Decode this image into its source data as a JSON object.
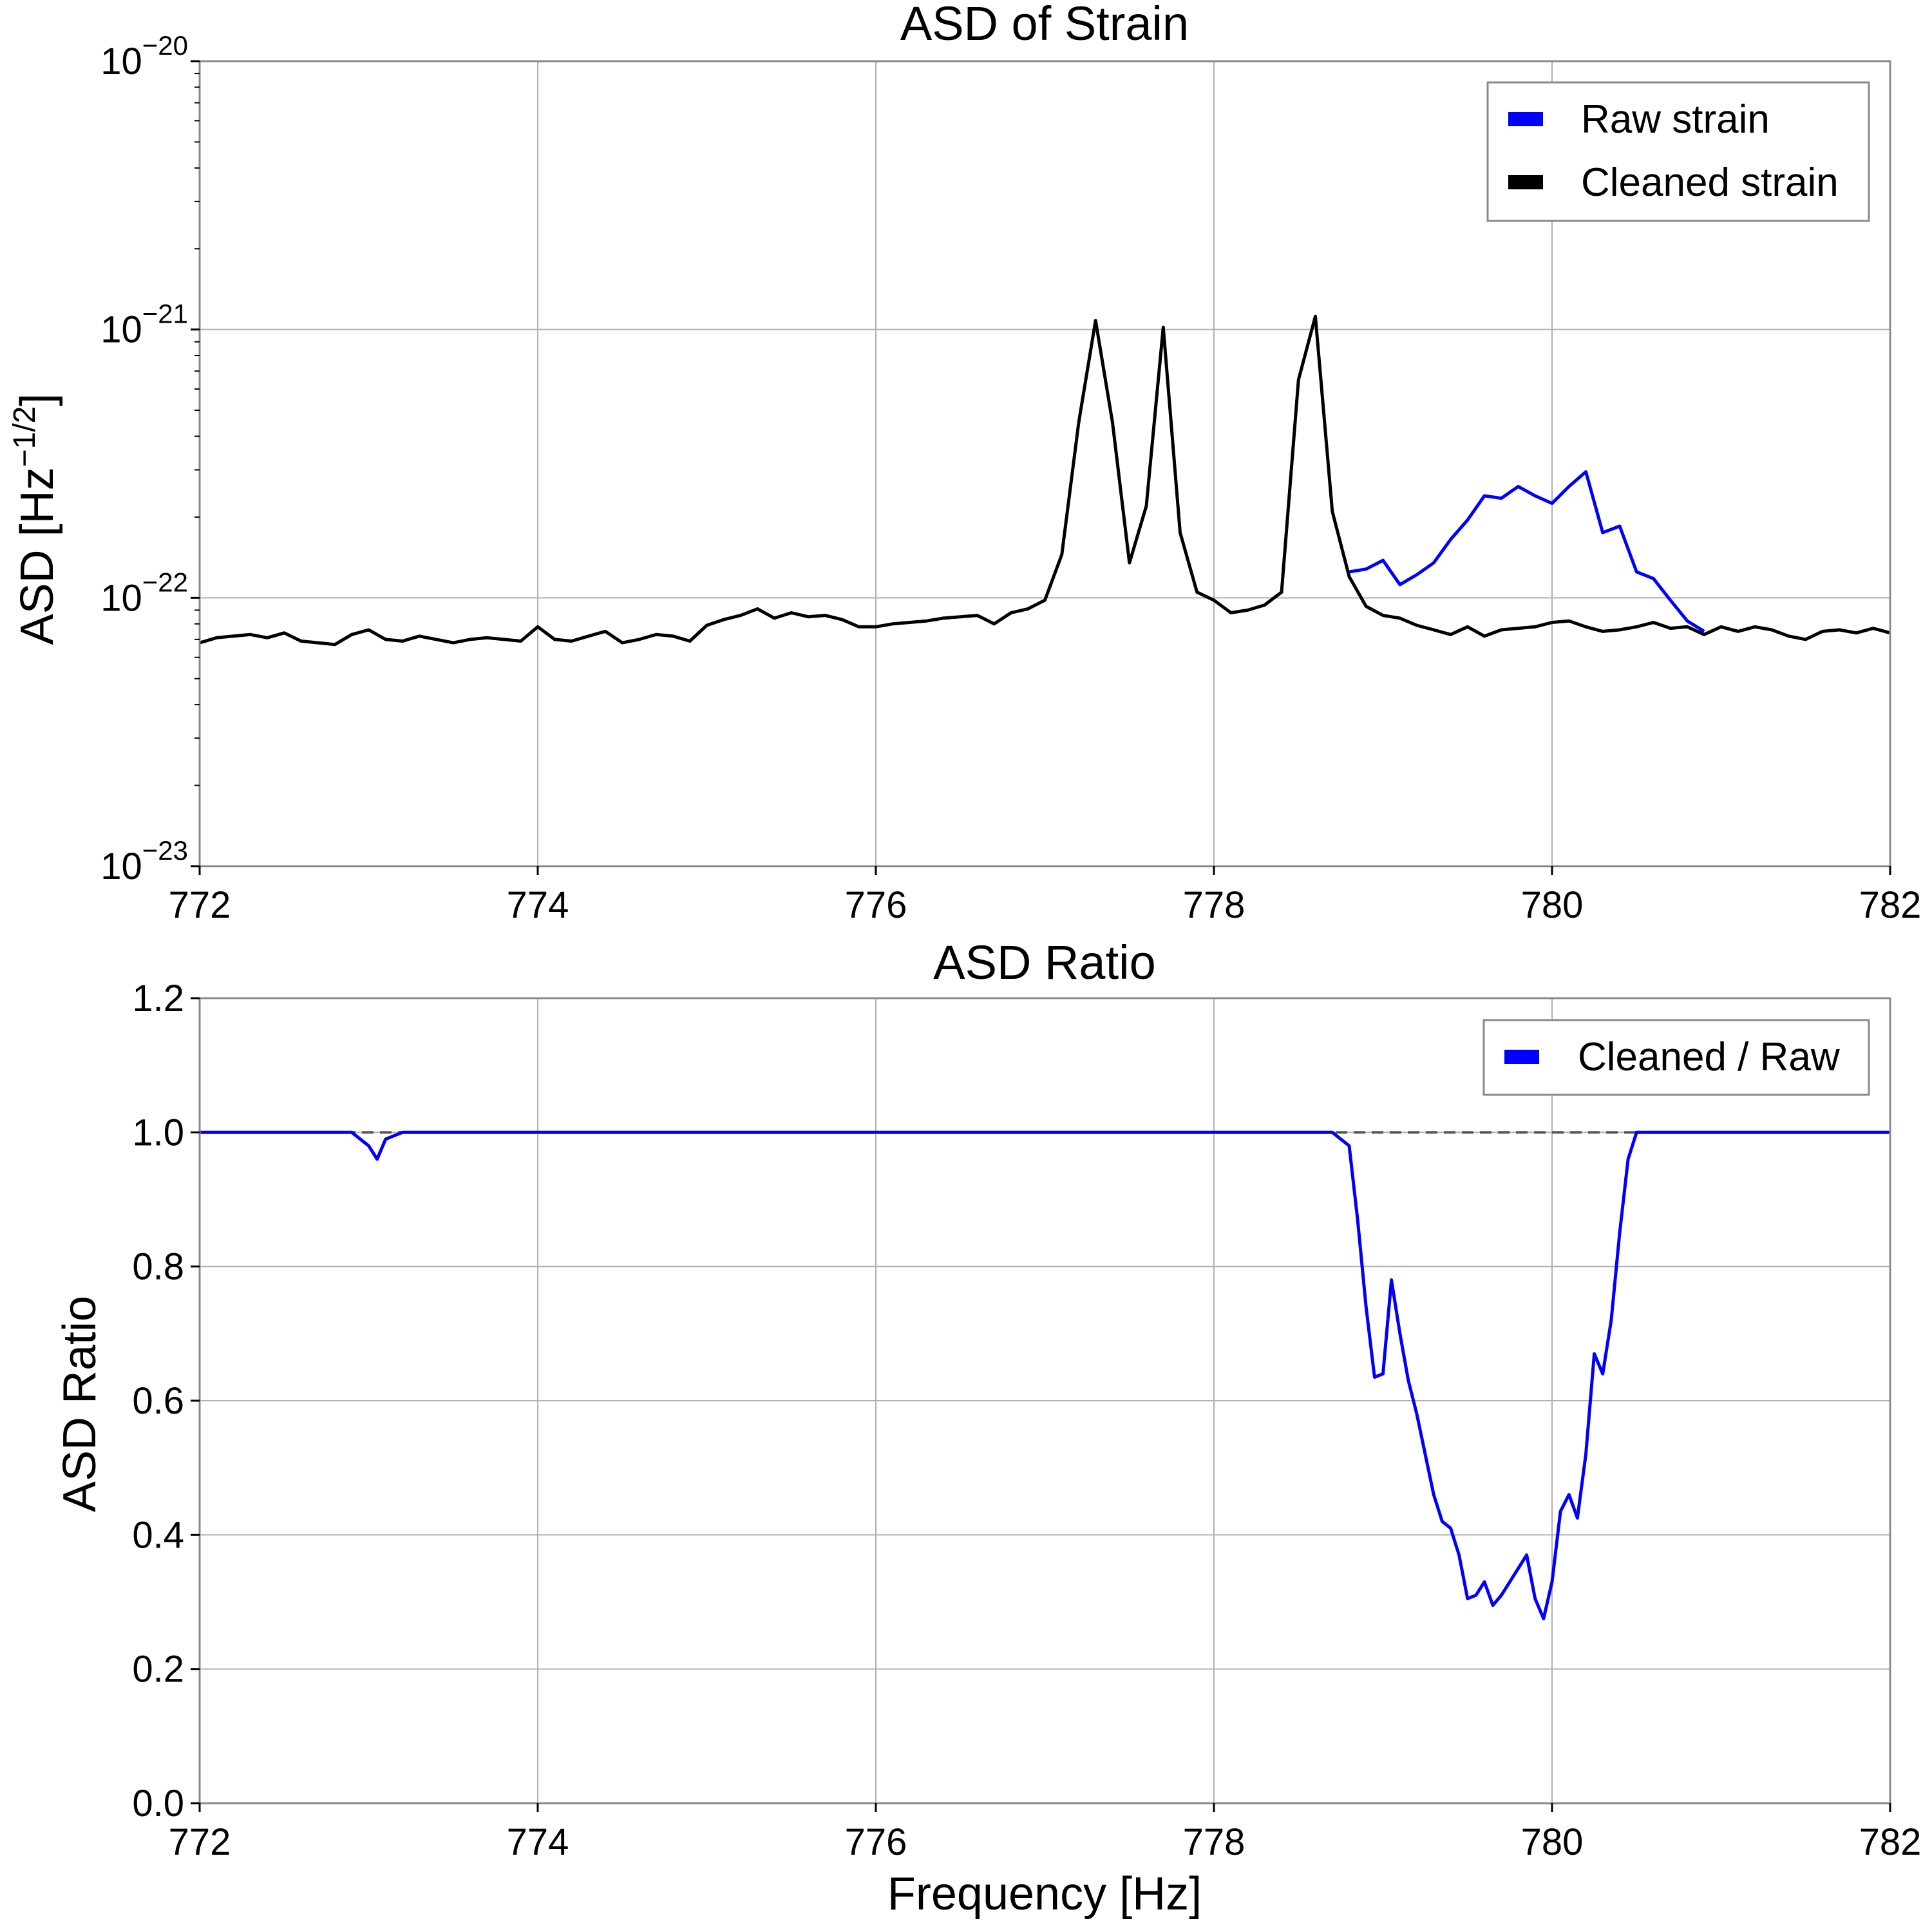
{
  "chart_data": [
    {
      "type": "line",
      "title": "ASD of Strain",
      "xlabel": "",
      "ylabel": "ASD [Hz^-1/2]",
      "ylabel_parts": {
        "main": "ASD [Hz",
        "exp": "−1/2",
        "close": "]"
      },
      "xlim": [
        772,
        782
      ],
      "ylim": [
        1e-23,
        1e-20
      ],
      "yscale": "log",
      "x_ticks": [
        "772",
        "774",
        "776",
        "778",
        "780",
        "782"
      ],
      "y_ticks": [
        {
          "base": "10",
          "exp": "−23"
        },
        {
          "base": "10",
          "exp": "−22"
        },
        {
          "base": "10",
          "exp": "−21"
        },
        {
          "base": "10",
          "exp": "−20"
        }
      ],
      "grid": true,
      "legend_position": "top-right",
      "series": [
        {
          "name": "Raw strain",
          "color": "#0000ff",
          "x": [
            778.8,
            778.9,
            779.0,
            779.1,
            779.2,
            779.3,
            779.4,
            779.5,
            779.6,
            779.7,
            779.8,
            779.9,
            780.0,
            780.1,
            780.2,
            780.3,
            780.4,
            780.5,
            780.6,
            780.7,
            780.8,
            780.9
          ],
          "values": [
            1.25e-22,
            1.28e-22,
            1.38e-22,
            1.12e-22,
            1.22e-22,
            1.35e-22,
            1.65e-22,
            1.95e-22,
            2.4e-22,
            2.35e-22,
            2.6e-22,
            2.4e-22,
            2.25e-22,
            2.6e-22,
            2.95e-22,
            1.75e-22,
            1.85e-22,
            1.25e-22,
            1.18e-22,
            9.8e-23,
            8.2e-23,
            7.5e-23
          ]
        },
        {
          "name": "Cleaned strain",
          "color": "#000000",
          "x": [
            772.0,
            772.1,
            772.2,
            772.3,
            772.4,
            772.5,
            772.6,
            772.7,
            772.8,
            772.9,
            773.0,
            773.1,
            773.2,
            773.3,
            773.4,
            773.5,
            773.6,
            773.7,
            773.8,
            773.9,
            774.0,
            774.1,
            774.2,
            774.3,
            774.4,
            774.5,
            774.6,
            774.7,
            774.8,
            774.9,
            775.0,
            775.1,
            775.2,
            775.3,
            775.4,
            775.5,
            775.6,
            775.7,
            775.8,
            775.9,
            776.0,
            776.1,
            776.2,
            776.3,
            776.4,
            776.5,
            776.6,
            776.7,
            776.8,
            776.9,
            777.0,
            777.1,
            777.2,
            777.3,
            777.4,
            777.5,
            777.6,
            777.7,
            777.8,
            777.9,
            778.0,
            778.1,
            778.2,
            778.3,
            778.4,
            778.5,
            778.6,
            778.7,
            778.8,
            778.9,
            779.0,
            779.1,
            779.2,
            779.3,
            779.4,
            779.5,
            779.6,
            779.7,
            779.8,
            779.9,
            780.0,
            780.1,
            780.2,
            780.3,
            780.4,
            780.5,
            780.6,
            780.7,
            780.8,
            780.9,
            781.0,
            781.1,
            781.2,
            781.3,
            781.4,
            781.5,
            781.6,
            781.7,
            781.8,
            781.9,
            782.0
          ],
          "values": [
            6.8e-23,
            7.1e-23,
            7.2e-23,
            7.3e-23,
            7.1e-23,
            7.4e-23,
            6.9e-23,
            6.8e-23,
            6.7e-23,
            7.3e-23,
            7.6e-23,
            7e-23,
            6.9e-23,
            7.2e-23,
            7e-23,
            6.8e-23,
            7e-23,
            7.1e-23,
            7e-23,
            6.9e-23,
            7.8e-23,
            7e-23,
            6.9e-23,
            7.2e-23,
            7.5e-23,
            6.8e-23,
            7e-23,
            7.3e-23,
            7.2e-23,
            6.9e-23,
            7.9e-23,
            8.3e-23,
            8.6e-23,
            9.1e-23,
            8.4e-23,
            8.8e-23,
            8.5e-23,
            8.6e-23,
            8.3e-23,
            7.8e-23,
            7.8e-23,
            8e-23,
            8.1e-23,
            8.2e-23,
            8.4e-23,
            8.5e-23,
            8.6e-23,
            8e-23,
            8.8e-23,
            9.1e-23,
            9.8e-23,
            1.45e-22,
            4.5e-22,
            1.08e-21,
            4.5e-22,
            1.35e-22,
            2.2e-22,
            1.02e-21,
            1.75e-22,
            1.05e-22,
            9.8e-23,
            8.8e-23,
            9e-23,
            9.4e-23,
            1.05e-22,
            6.5e-22,
            1.12e-21,
            2.1e-22,
            1.2e-22,
            9.3e-23,
            8.6e-23,
            8.4e-23,
            7.9e-23,
            7.6e-23,
            7.3e-23,
            7.8e-23,
            7.2e-23,
            7.6e-23,
            7.7e-23,
            7.8e-23,
            8.1e-23,
            8.2e-23,
            7.8e-23,
            7.5e-23,
            7.6e-23,
            7.8e-23,
            8.1e-23,
            7.7e-23,
            7.8e-23,
            7.3e-23,
            7.8e-23,
            7.5e-23,
            7.8e-23,
            7.6e-23,
            7.2e-23,
            7e-23,
            7.5e-23,
            7.6e-23,
            7.4e-23,
            7.7e-23,
            7.4e-23
          ]
        }
      ]
    },
    {
      "type": "line",
      "title": "ASD Ratio",
      "xlabel": "Frequency [Hz]",
      "ylabel": "ASD Ratio",
      "xlim": [
        772,
        782
      ],
      "ylim": [
        0.0,
        1.2
      ],
      "x_ticks": [
        "772",
        "774",
        "776",
        "778",
        "780",
        "782"
      ],
      "y_ticks": [
        "0.0",
        "0.2",
        "0.4",
        "0.6",
        "0.8",
        "1.0",
        "1.2"
      ],
      "grid": true,
      "legend_position": "top-right",
      "reference_line": {
        "y": 1.0,
        "style": "dashed",
        "color": "#555555"
      },
      "series": [
        {
          "name": "Cleaned / Raw",
          "color": "#0000ff",
          "x": [
            772.0,
            772.9,
            773.0,
            773.05,
            773.1,
            773.2,
            773.3,
            778.7,
            778.8,
            778.85,
            778.9,
            778.95,
            779.0,
            779.05,
            779.1,
            779.15,
            779.2,
            779.3,
            779.35,
            779.4,
            779.45,
            779.5,
            779.55,
            779.6,
            779.65,
            779.7,
            779.75,
            779.8,
            779.85,
            779.9,
            779.95,
            780.0,
            780.05,
            780.1,
            780.15,
            780.2,
            780.25,
            780.3,
            780.35,
            780.4,
            780.45,
            780.5,
            780.55,
            780.6,
            780.65,
            780.7,
            780.75,
            780.8,
            780.85,
            780.9,
            781.0,
            782.0
          ],
          "values": [
            1.0,
            1.0,
            0.98,
            0.96,
            0.99,
            1.0,
            1.0,
            1.0,
            0.98,
            0.87,
            0.74,
            0.635,
            0.64,
            0.78,
            0.7,
            0.63,
            0.58,
            0.46,
            0.42,
            0.41,
            0.37,
            0.305,
            0.31,
            0.33,
            0.295,
            0.31,
            0.33,
            0.35,
            0.37,
            0.305,
            0.275,
            0.33,
            0.435,
            0.46,
            0.425,
            0.52,
            0.67,
            0.64,
            0.72,
            0.85,
            0.96,
            1.0,
            1.0,
            1.0,
            1.0,
            1.0,
            1.0,
            1.0,
            1.0,
            1.0,
            1.0,
            1.0
          ]
        }
      ]
    }
  ]
}
